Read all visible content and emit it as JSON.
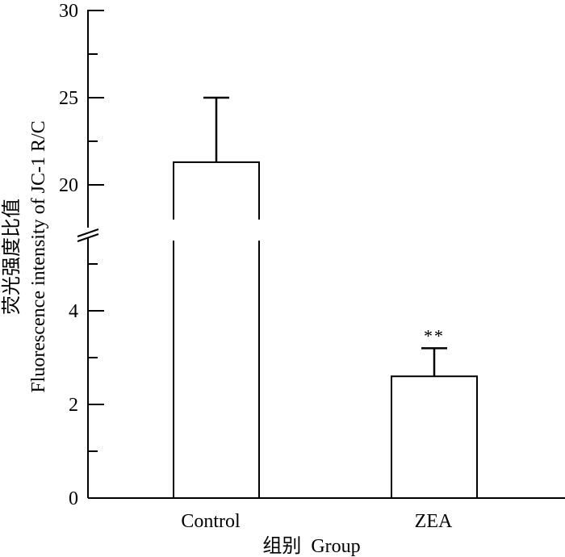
{
  "chart_data": {
    "type": "bar",
    "title": "",
    "categories": [
      "Control",
      "ZEA"
    ],
    "values": [
      21.3,
      2.6
    ],
    "error": [
      3.7,
      0.6
    ],
    "significance": [
      "",
      "**"
    ],
    "xlabel": "组别  Group",
    "ylabel_cn": "荧光强度比值",
    "ylabel_en": "Fluorescence intensity of JC-1 R/C",
    "axis_break": true,
    "ylim_lower": [
      0,
      5.5
    ],
    "ylim_upper": [
      17.5,
      30
    ],
    "yticks_lower": [
      0,
      2,
      4
    ],
    "yticks_upper": [
      20,
      25,
      30
    ],
    "tick_labels_lower": [
      "0",
      "2",
      "4"
    ],
    "tick_labels_upper": [
      "20",
      "25",
      "30"
    ],
    "grid": false,
    "legend": "none"
  }
}
